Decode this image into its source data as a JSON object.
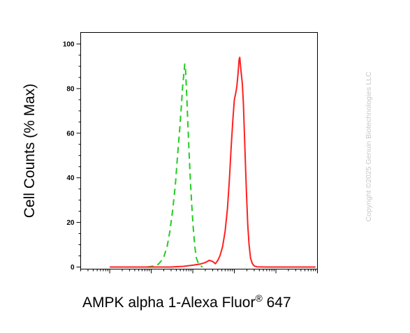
{
  "chart_data": {
    "type": "line",
    "title": "",
    "xlabel": "AMPK alpha 1-Alexa Fluor® 647",
    "xlabel_main": "AMPK alpha 1-Alexa Fluor",
    "xlabel_sup": "®",
    "xlabel_tail": " 647",
    "ylabel": "Cell Counts (% Max)",
    "x_scale": "log",
    "xlim": [
      0.2,
      100000
    ],
    "ylim": [
      0,
      100
    ],
    "y_ticks": [
      {
        "value": 0,
        "label": "0"
      },
      {
        "value": 20,
        "label": "20"
      },
      {
        "value": 40,
        "label": "40"
      },
      {
        "value": 60,
        "label": "60"
      },
      {
        "value": 80,
        "label": "80"
      },
      {
        "value": 100,
        "label": "100"
      }
    ],
    "grid": false,
    "legend": "none",
    "series": [
      {
        "line_style": "dashed",
        "color": "#22cc22",
        "points": [
          [
            8,
            0
          ],
          [
            11,
            0.4
          ],
          [
            14,
            0.8
          ],
          [
            17,
            2.5
          ],
          [
            20,
            4.5
          ],
          [
            24,
            9
          ],
          [
            28,
            16
          ],
          [
            33,
            26
          ],
          [
            38,
            37
          ],
          [
            43,
            50
          ],
          [
            48,
            61
          ],
          [
            53,
            72
          ],
          [
            57,
            81
          ],
          [
            61,
            87
          ],
          [
            64,
            91
          ],
          [
            67,
            88
          ],
          [
            71,
            78
          ],
          [
            76,
            64
          ],
          [
            82,
            50
          ],
          [
            88,
            38
          ],
          [
            95,
            27
          ],
          [
            103,
            17
          ],
          [
            112,
            9
          ],
          [
            122,
            4
          ],
          [
            135,
            1.8
          ],
          [
            150,
            0.6
          ],
          [
            170,
            0
          ]
        ]
      },
      {
        "line_style": "solid",
        "color": "#ff2020",
        "points": [
          [
            1,
            0
          ],
          [
            30,
            0
          ],
          [
            60,
            0.3
          ],
          [
            100,
            0.8
          ],
          [
            150,
            1.3
          ],
          [
            200,
            2
          ],
          [
            250,
            3
          ],
          [
            300,
            2.5
          ],
          [
            350,
            1.5
          ],
          [
            400,
            3
          ],
          [
            450,
            5
          ],
          [
            520,
            9
          ],
          [
            600,
            16
          ],
          [
            680,
            26
          ],
          [
            760,
            39
          ],
          [
            840,
            54
          ],
          [
            920,
            66
          ],
          [
            1000,
            75
          ],
          [
            1080,
            78
          ],
          [
            1150,
            81
          ],
          [
            1230,
            87
          ],
          [
            1300,
            93
          ],
          [
            1350,
            94
          ],
          [
            1410,
            90
          ],
          [
            1480,
            86
          ],
          [
            1560,
            82
          ],
          [
            1650,
            73
          ],
          [
            1740,
            61
          ],
          [
            1840,
            47
          ],
          [
            1960,
            33
          ],
          [
            2100,
            19
          ],
          [
            2260,
            10
          ],
          [
            2450,
            4
          ],
          [
            2700,
            1.6
          ],
          [
            3000,
            0.5
          ],
          [
            3500,
            0.1
          ],
          [
            6000,
            0
          ],
          [
            20000,
            0
          ],
          [
            90000,
            0
          ]
        ]
      }
    ]
  },
  "watermark": "Copyright ©2025 Genuin Biotechnologies LLC"
}
